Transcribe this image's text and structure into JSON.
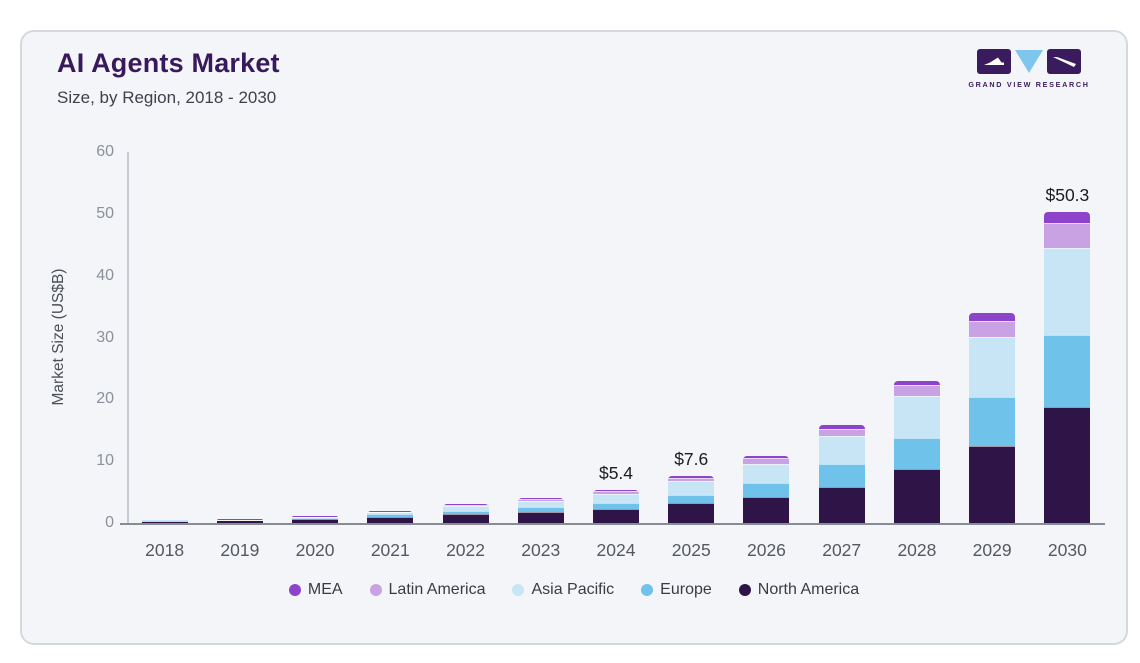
{
  "header": {
    "title": "AI Agents Market",
    "subtitle": "Size, by Region, 2018 - 2030"
  },
  "logo": {
    "brand": "GRAND VIEW RESEARCH",
    "purple": "#3a1b5e",
    "blue": "#7ec6ec"
  },
  "chart_data": {
    "type": "bar",
    "stacked": true,
    "title": "AI Agents Market",
    "subtitle": "Size, by Region, 2018 - 2030",
    "ylabel": "Market Size (US$B)",
    "ylim": [
      0,
      60
    ],
    "yticks": [
      0,
      10,
      20,
      30,
      40,
      50,
      60
    ],
    "grid": false,
    "legend_position": "bottom",
    "categories": [
      "2018",
      "2019",
      "2020",
      "2021",
      "2022",
      "2023",
      "2024",
      "2025",
      "2026",
      "2027",
      "2028",
      "2029",
      "2030"
    ],
    "series": [
      {
        "name": "North America",
        "color": "#2f1547",
        "values": [
          0.35,
          0.45,
          0.6,
          1.0,
          1.4,
          1.8,
          2.2,
          3.2,
          4.2,
          5.9,
          8.7,
          12.5,
          18.7
        ]
      },
      {
        "name": "Europe",
        "color": "#6fc2ea",
        "values": [
          0.08,
          0.12,
          0.2,
          0.4,
          0.6,
          0.8,
          1.0,
          1.3,
          2.3,
          3.6,
          5.0,
          7.9,
          11.7
        ]
      },
      {
        "name": "Asia Pacific",
        "color": "#c8e5f5",
        "values": [
          0.05,
          0.09,
          0.2,
          0.4,
          0.7,
          1.0,
          1.5,
          2.3,
          3.0,
          4.5,
          6.8,
          9.7,
          14.1
        ]
      },
      {
        "name": "Latin America",
        "color": "#c9a2e4",
        "values": [
          0.01,
          0.025,
          0.06,
          0.13,
          0.2,
          0.27,
          0.45,
          0.5,
          1.0,
          1.2,
          1.8,
          2.5,
          4.1
        ]
      },
      {
        "name": "MEA",
        "color": "#8e43cb",
        "values": [
          0.01,
          0.015,
          0.04,
          0.07,
          0.1,
          0.13,
          0.25,
          0.3,
          0.4,
          0.6,
          0.7,
          1.4,
          1.7
        ]
      }
    ],
    "totals": [
      0.5,
      0.7,
      1.1,
      2.0,
      3.0,
      4.0,
      5.4,
      7.6,
      10.9,
      15.8,
      23.0,
      34.0,
      50.3
    ],
    "annotations": [
      {
        "category": "2024",
        "label": "$5.4"
      },
      {
        "category": "2025",
        "label": "$7.6"
      },
      {
        "category": "2030",
        "label": "$50.3"
      }
    ],
    "legend": [
      {
        "label": "MEA",
        "color": "#8e43cb"
      },
      {
        "label": "Latin America",
        "color": "#c9a2e4"
      },
      {
        "label": "Asia Pacific",
        "color": "#c8e5f5"
      },
      {
        "label": "Europe",
        "color": "#6fc2ea"
      },
      {
        "label": "North America",
        "color": "#2f1547"
      }
    ]
  }
}
